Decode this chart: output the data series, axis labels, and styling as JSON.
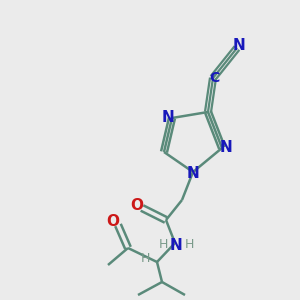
{
  "bg_color": "#ebebeb",
  "bond_color": "#5a8a7a",
  "bond_width": 1.8,
  "atom_colors": {
    "N": "#1818bb",
    "O": "#cc1818",
    "C": "#1818bb",
    "H": "#7a9a8a",
    "bond": "#5a8a7a"
  },
  "font_size_N": 11,
  "font_size_O": 11,
  "font_size_C": 10,
  "font_size_H": 9
}
